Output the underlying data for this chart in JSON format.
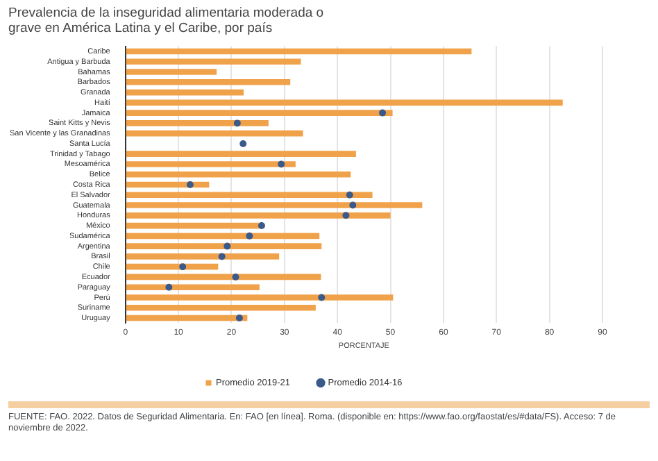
{
  "chart_data": {
    "type": "bar",
    "orientation": "horizontal",
    "title": "Prevalencia de la inseguridad alimentaria moderada o grave en América Latina y el Caribe, por país",
    "xlabel": "PORCENTAJE",
    "categories": [
      "Caribe",
      "Antigua y Barbuda",
      "Bahamas",
      "Barbados",
      "Granada",
      "Haití",
      "Jamaica",
      "Saint Kitts y Nevis",
      "San Vicente y las Granadinas",
      "Santa Lucía",
      "Trinidad y Tabago",
      "Mesoamérica",
      "Belice",
      "Costa Rica",
      "El Salvador",
      "Guatemala",
      "Honduras",
      "México",
      "Sudamérica",
      "Argentina",
      "Brasil",
      "Chile",
      "Ecuador",
      "Paraguay",
      "Perú",
      "Suriname",
      "Uruguay"
    ],
    "series": [
      {
        "name": "Promedio 2019-21",
        "color": "#f0a24a",
        "values": [
          65.3,
          33.1,
          17.2,
          31.1,
          22.3,
          82.5,
          50.4,
          27,
          33.5,
          null,
          43.5,
          32.1,
          42.5,
          15.8,
          46.6,
          56,
          50,
          25.7,
          36.6,
          37,
          29,
          17.5,
          36.9,
          25.3,
          50.5,
          35.9,
          23
        ]
      },
      {
        "name": "Promedio 2014-16",
        "type": "scatter",
        "color": "#3a5a8c",
        "marker": "circle",
        "values": [
          null,
          null,
          null,
          null,
          null,
          null,
          48.5,
          21.1,
          null,
          22.2,
          null,
          29.4,
          null,
          12.2,
          42.3,
          42.9,
          41.6,
          25.7,
          23.4,
          19.2,
          18.2,
          10.8,
          20.8,
          8.2,
          37,
          null,
          21.5
        ]
      }
    ],
    "xlim": [
      0,
      90
    ],
    "xticks": [
      0,
      10,
      20,
      30,
      40,
      50,
      60,
      70,
      80,
      90
    ],
    "grid": "x",
    "legend": "bottom",
    "annotations": [
      "FUENTE: FAO. 2022. Datos de Seguridad Alimentaria. En: FAO [en línea]. Roma. (disponible en: https://www.fao.org/faostat/es/#data/FS). Acceso: 7 de noviembre de 2022."
    ]
  }
}
